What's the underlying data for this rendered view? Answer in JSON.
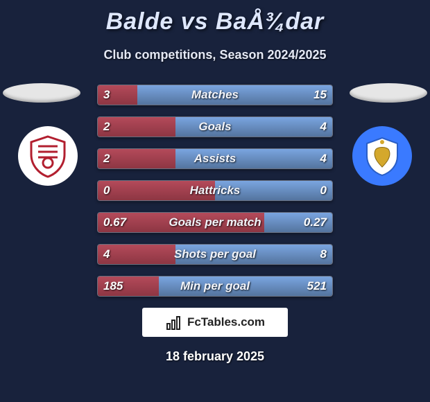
{
  "header": {
    "title": "Balde vs BaÅ¾dar",
    "subtitle": "Club competitions, Season 2024/2025"
  },
  "badges": {
    "left": {
      "bg": "#ffffff",
      "accent": "#b21f2f"
    },
    "right": {
      "bg": "#3a7aff",
      "accent": "#d4a82c"
    }
  },
  "stats": {
    "bar_left_color": "linear-gradient(#b44a5a,#8d3643)",
    "bar_right_color": "linear-gradient(#7aa5e0,#54749e)",
    "rows": [
      {
        "label": "Matches",
        "left": "3",
        "right": "15",
        "left_pct": 17
      },
      {
        "label": "Goals",
        "left": "2",
        "right": "4",
        "left_pct": 33
      },
      {
        "label": "Assists",
        "left": "2",
        "right": "4",
        "left_pct": 33
      },
      {
        "label": "Hattricks",
        "left": "0",
        "right": "0",
        "left_pct": 50
      },
      {
        "label": "Goals per match",
        "left": "0.67",
        "right": "0.27",
        "left_pct": 71
      },
      {
        "label": "Shots per goal",
        "left": "4",
        "right": "8",
        "left_pct": 33
      },
      {
        "label": "Min per goal",
        "left": "185",
        "right": "521",
        "left_pct": 26
      }
    ]
  },
  "footer": {
    "brand_name": "FcTables.com",
    "date": "18 february 2025"
  }
}
